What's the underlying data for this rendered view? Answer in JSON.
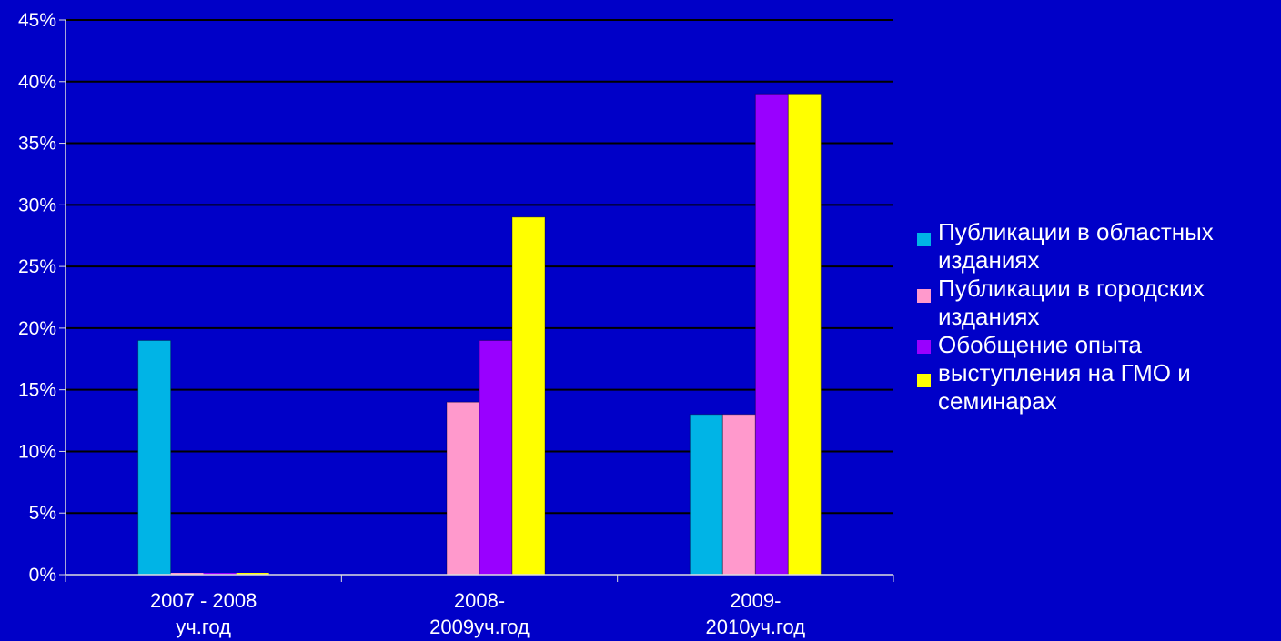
{
  "chart_data": {
    "type": "bar",
    "categories": [
      [
        "2007 - 2008",
        "уч.год"
      ],
      [
        "2008-",
        "2009уч.год"
      ],
      [
        "2009-",
        "2010уч.год"
      ]
    ],
    "series": [
      {
        "name": "Публикации в областных изданиях",
        "color": "#00b4e6",
        "values": [
          19,
          0,
          13
        ]
      },
      {
        "name": "Публикации в городских изданиях",
        "color": "#ff99cc",
        "values": [
          0,
          14,
          13
        ]
      },
      {
        "name": "Обобщение опыта",
        "color": "#9900ff",
        "values": [
          0,
          19,
          39
        ]
      },
      {
        "name": "выступления на ГМО и семинарах",
        "color": "#ffff00",
        "values": [
          0,
          29,
          39
        ]
      }
    ],
    "y_ticks": [
      "0%",
      "5%",
      "10%",
      "15%",
      "20%",
      "25%",
      "30%",
      "35%",
      "40%",
      "45%"
    ],
    "ylim": [
      0,
      45
    ],
    "grid": true,
    "legend_position": "right",
    "title": "",
    "xlabel": "",
    "ylabel": ""
  },
  "legend": {
    "items": [
      {
        "lines": [
          "Публикации в областных",
          "изданиях"
        ],
        "color": "#00b4e6"
      },
      {
        "lines": [
          "Публикации в городских",
          "изданиях"
        ],
        "color": "#ff99cc"
      },
      {
        "lines": [
          "Обобщение опыта"
        ],
        "color": "#9900ff"
      },
      {
        "lines": [
          "выступления на ГМО и",
          "семинарах"
        ],
        "color": "#ffff00"
      }
    ]
  },
  "colors": {
    "background": "#0000c8",
    "gridline": "#000000",
    "axis": "#dddddd",
    "text": "#ffffff"
  }
}
